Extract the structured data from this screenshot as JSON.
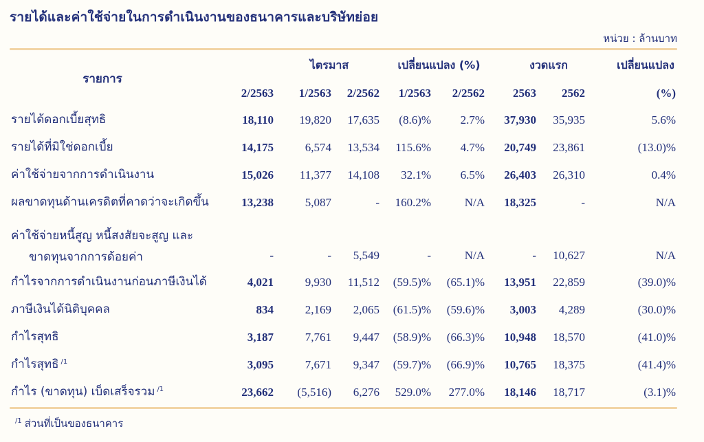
{
  "page": {
    "title": "รายได้และค่าใช้จ่ายในการดำเนินงานของธนาคารและบริษัทย่อย",
    "unit_label": "หน่วย : ล้านบาท"
  },
  "colors": {
    "text_navy": "#23307a",
    "rule_tan": "#f2d5a6",
    "background": "#fefdf8"
  },
  "table": {
    "item_header": "รายการ",
    "groups": [
      {
        "label": "ไตรมาส",
        "span": 3
      },
      {
        "label": "เปลี่ยนแปลง (%)",
        "span": 2
      },
      {
        "label": "งวดแรก",
        "span": 2
      },
      {
        "label": "เปลี่ยนแปลง",
        "span": 1
      }
    ],
    "columns": [
      "2/2563",
      "1/2563",
      "2/2562",
      "1/2563",
      "2/2562",
      "2563",
      "2562",
      "(%)"
    ],
    "bold_value_columns": [
      0,
      5
    ],
    "rows": [
      {
        "label": "รายได้ดอกเบี้ยสุทธิ",
        "values": [
          "18,110",
          "19,820",
          "17,635",
          "(8.6)%",
          "2.7%",
          "37,930",
          "35,935",
          "5.6%"
        ]
      },
      {
        "label": "รายได้ที่มิใช่ดอกเบี้ย",
        "values": [
          "14,175",
          "6,574",
          "13,534",
          "115.6%",
          "4.7%",
          "20,749",
          "23,861",
          "(13.0)%"
        ]
      },
      {
        "label": "ค่าใช้จ่ายจากการดำเนินงาน",
        "values": [
          "15,026",
          "11,377",
          "14,108",
          "32.1%",
          "6.5%",
          "26,403",
          "26,310",
          "0.4%"
        ]
      },
      {
        "label": "ผลขาดทุนด้านเครดิตที่คาดว่าจะเกิดขึ้น",
        "values": [
          "13,238",
          "5,087",
          "-",
          "160.2%",
          "N/A",
          "18,325",
          "-",
          "N/A"
        ]
      },
      {
        "label": "ค่าใช้จ่ายหนี้สูญ หนี้สงสัยจะสูญ และ",
        "label2": "ขาดทุนจากการด้อยค่า",
        "values": [
          "-",
          "-",
          "5,549",
          "-",
          "N/A",
          "-",
          "10,627",
          "N/A"
        ]
      },
      {
        "label": "กำไรจากการดำเนินงานก่อนภาษีเงินได้",
        "values": [
          "4,021",
          "9,930",
          "11,512",
          "(59.5)%",
          "(65.1)%",
          "13,951",
          "22,859",
          "(39.0)%"
        ]
      },
      {
        "label": "ภาษีเงินได้นิติบุคคล",
        "values": [
          "834",
          "2,169",
          "2,065",
          "(61.5)%",
          "(59.6)%",
          "3,003",
          "4,289",
          "(30.0)%"
        ]
      },
      {
        "label": "กำไรสุทธิ",
        "values": [
          "3,187",
          "7,761",
          "9,447",
          "(58.9)%",
          "(66.3)%",
          "10,948",
          "18,570",
          "(41.0)%"
        ]
      },
      {
        "label": "กำไรสุทธิ",
        "sup": "/1",
        "values": [
          "3,095",
          "7,671",
          "9,347",
          "(59.7)%",
          "(66.9)%",
          "10,765",
          "18,375",
          "(41.4)%"
        ]
      },
      {
        "label": "กำไร (ขาดทุน) เบ็ดเสร็จรวม",
        "sup": "/1",
        "values": [
          "23,662",
          "(5,516)",
          "6,276",
          "529.0%",
          "277.0%",
          "18,146",
          "18,717",
          "(3.1)%"
        ]
      }
    ]
  },
  "footnote": {
    "sup": "/1",
    "text": "ส่วนที่เป็นของธนาคาร"
  }
}
